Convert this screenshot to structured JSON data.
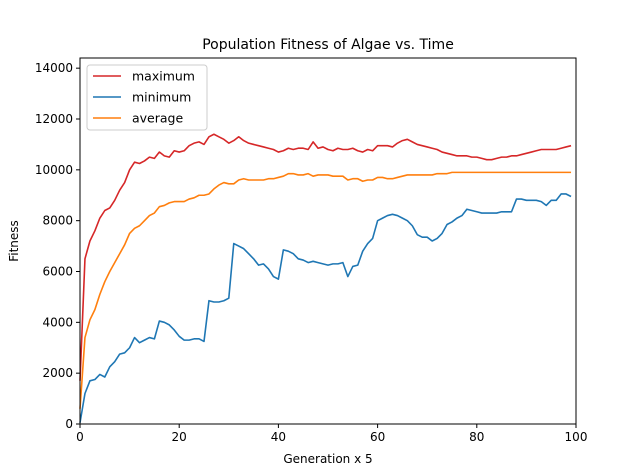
{
  "chart_data": {
    "type": "line",
    "title": "Population Fitness of Algae vs. Time",
    "xlabel": "Generation x 5",
    "ylabel": "Fitness",
    "xlim": [
      0,
      100
    ],
    "ylim": [
      0,
      14400
    ],
    "xticks": [
      0,
      20,
      40,
      60,
      80,
      100
    ],
    "yticks": [
      0,
      2000,
      4000,
      6000,
      8000,
      10000,
      12000,
      14000
    ],
    "grid": false,
    "legend_position": "top-left",
    "x": [
      0,
      1,
      2,
      3,
      4,
      5,
      6,
      7,
      8,
      9,
      10,
      11,
      12,
      13,
      14,
      15,
      16,
      17,
      18,
      19,
      20,
      21,
      22,
      23,
      24,
      25,
      26,
      27,
      28,
      29,
      30,
      31,
      32,
      33,
      34,
      35,
      36,
      37,
      38,
      39,
      40,
      41,
      42,
      43,
      44,
      45,
      46,
      47,
      48,
      49,
      50,
      51,
      52,
      53,
      54,
      55,
      56,
      57,
      58,
      59,
      60,
      61,
      62,
      63,
      64,
      65,
      66,
      67,
      68,
      69,
      70,
      71,
      72,
      73,
      74,
      75,
      76,
      77,
      78,
      79,
      80,
      81,
      82,
      83,
      84,
      85,
      86,
      87,
      88,
      89,
      90,
      91,
      92,
      93,
      94,
      95,
      96,
      97,
      98,
      99
    ],
    "series": [
      {
        "name": "maximum",
        "color": "#d62728",
        "values": [
          1700,
          6500,
          7200,
          7600,
          8100,
          8400,
          8500,
          8800,
          9200,
          9500,
          10000,
          10300,
          10250,
          10350,
          10500,
          10450,
          10700,
          10550,
          10500,
          10750,
          10700,
          10750,
          10950,
          11050,
          11100,
          11000,
          11300,
          11400,
          11300,
          11200,
          11050,
          11150,
          11300,
          11150,
          11050,
          11000,
          10950,
          10900,
          10850,
          10800,
          10700,
          10750,
          10850,
          10800,
          10850,
          10850,
          10800,
          11100,
          10850,
          10900,
          10800,
          10750,
          10850,
          10800,
          10800,
          10850,
          10750,
          10700,
          10800,
          10750,
          10950,
          10950,
          10950,
          10900,
          11050,
          11150,
          11200,
          11100,
          11000,
          10950,
          10900,
          10850,
          10800,
          10700,
          10650,
          10600,
          10550,
          10550,
          10550,
          10500,
          10500,
          10450,
          10400,
          10400,
          10450,
          10500,
          10500,
          10550,
          10550,
          10600,
          10650,
          10700,
          10750,
          10800,
          10800,
          10800,
          10800,
          10850,
          10900,
          10950
        ]
      },
      {
        "name": "minimum",
        "color": "#1f77b4",
        "values": [
          50,
          1200,
          1700,
          1750,
          1950,
          1850,
          2250,
          2450,
          2750,
          2800,
          3000,
          3400,
          3200,
          3300,
          3400,
          3350,
          4050,
          4000,
          3900,
          3700,
          3450,
          3300,
          3300,
          3350,
          3350,
          3250,
          4850,
          4800,
          4800,
          4850,
          4950,
          7100,
          7000,
          6900,
          6700,
          6500,
          6250,
          6300,
          6100,
          5800,
          5700,
          6850,
          6800,
          6700,
          6500,
          6450,
          6350,
          6400,
          6350,
          6300,
          6250,
          6300,
          6300,
          6350,
          5800,
          6200,
          6250,
          6800,
          7100,
          7300,
          8000,
          8100,
          8200,
          8250,
          8200,
          8100,
          8000,
          7800,
          7450,
          7350,
          7350,
          7200,
          7300,
          7500,
          7850,
          7950,
          8100,
          8200,
          8450,
          8400,
          8350,
          8300,
          8300,
          8300,
          8300,
          8350,
          8350,
          8350,
          8850,
          8850,
          8800,
          8800,
          8800,
          8750,
          8600,
          8800,
          8800,
          9050,
          9050,
          8950
        ]
      },
      {
        "name": "average",
        "color": "#ff7f0e",
        "values": [
          600,
          3400,
          4100,
          4500,
          5100,
          5600,
          6000,
          6350,
          6700,
          7050,
          7500,
          7700,
          7800,
          8000,
          8200,
          8300,
          8550,
          8600,
          8700,
          8750,
          8750,
          8750,
          8850,
          8900,
          9000,
          9000,
          9050,
          9250,
          9400,
          9500,
          9450,
          9450,
          9600,
          9650,
          9600,
          9600,
          9600,
          9600,
          9650,
          9650,
          9700,
          9750,
          9850,
          9850,
          9800,
          9800,
          9850,
          9750,
          9800,
          9800,
          9800,
          9750,
          9750,
          9750,
          9600,
          9650,
          9650,
          9550,
          9600,
          9600,
          9700,
          9700,
          9650,
          9650,
          9700,
          9750,
          9800,
          9800,
          9800,
          9800,
          9800,
          9800,
          9850,
          9850,
          9850,
          9900,
          9900,
          9900,
          9900,
          9900,
          9900,
          9900,
          9900,
          9900,
          9900,
          9900,
          9900,
          9900,
          9900,
          9900,
          9900,
          9900,
          9900,
          9900,
          9900,
          9900,
          9900,
          9900,
          9900,
          9900
        ]
      }
    ]
  }
}
